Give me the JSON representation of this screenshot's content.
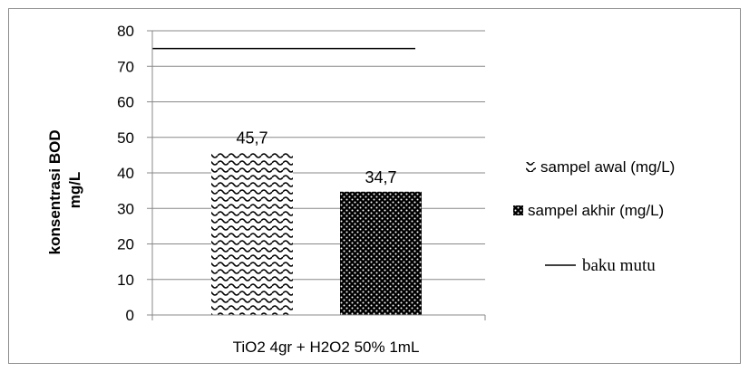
{
  "chart_data": {
    "type": "bar",
    "categories": [
      "TiO2 4gr + H2O2 50% 1mL"
    ],
    "series": [
      {
        "name": "sampel awal (mg/L)",
        "values": [
          45.7
        ],
        "data_label": "45,7",
        "pattern": "wave"
      },
      {
        "name": "sampel akhir (mg/L)",
        "values": [
          34.7
        ],
        "data_label": "34,7",
        "pattern": "dots"
      }
    ],
    "reference_line": {
      "name": "baku mutu",
      "value": 75
    },
    "ylabel_line1": "konsentrasi BOD",
    "ylabel_line2": "mg/L",
    "xlabel": "",
    "ylim": [
      0,
      80
    ],
    "yticks": [
      "0",
      "10",
      "20",
      "30",
      "40",
      "50",
      "60",
      "70",
      "80"
    ],
    "grid": true,
    "legend_position": "right",
    "colors": {
      "bar_dark": "#000000",
      "bar_light": "#ffffff",
      "grid": "#888888",
      "frame": "#8c8c8c"
    }
  }
}
